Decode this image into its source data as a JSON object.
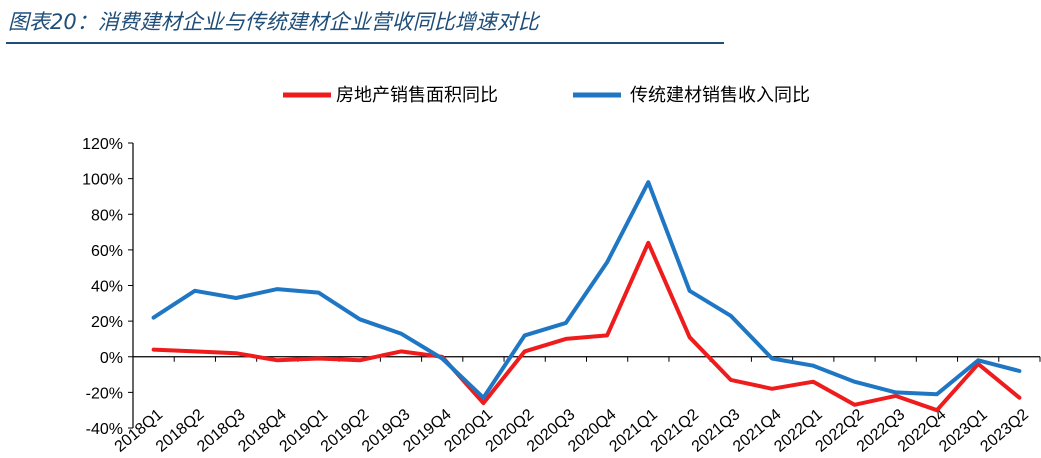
{
  "figure_title": "图表20：消费建材企业与传统建材企业营收同比增速对比",
  "colors": {
    "series_red": "#ee1c1c",
    "series_blue": "#1f77c4",
    "title": "#1f4e79"
  },
  "chart_data": {
    "type": "line",
    "categories": [
      "2018Q1",
      "2018Q2",
      "2018Q3",
      "2018Q4",
      "2019Q1",
      "2019Q2",
      "2019Q3",
      "2019Q4",
      "2020Q1",
      "2020Q2",
      "2020Q3",
      "2020Q4",
      "2021Q1",
      "2021Q2",
      "2021Q3",
      "2021Q4",
      "2022Q1",
      "2022Q2",
      "2022Q3",
      "2022Q4",
      "2023Q1",
      "2023Q2"
    ],
    "series": [
      {
        "name": "房地产销售面积同比",
        "color": "#ee1c1c",
        "values": [
          4,
          3,
          2,
          -2,
          -1,
          -2,
          3,
          0,
          -26,
          3,
          10,
          12,
          64,
          11,
          -13,
          -18,
          -14,
          -27,
          -22,
          -30,
          -4,
          -23
        ]
      },
      {
        "name": "传统建材销售收入同比",
        "color": "#1f77c4",
        "values": [
          22,
          37,
          33,
          38,
          36,
          21,
          13,
          -1,
          -23,
          12,
          19,
          53,
          98,
          37,
          23,
          -1,
          -5,
          -14,
          -20,
          -21,
          -2,
          -8
        ]
      }
    ],
    "ylim": [
      -40,
      120
    ],
    "yticks": [
      "120%",
      "100%",
      "80%",
      "60%",
      "40%",
      "20%",
      "0%",
      "-20%",
      "-40%"
    ],
    "ytick_values": [
      120,
      100,
      80,
      60,
      40,
      20,
      0,
      -20,
      -40
    ],
    "legend_position": "top",
    "grid": false
  }
}
